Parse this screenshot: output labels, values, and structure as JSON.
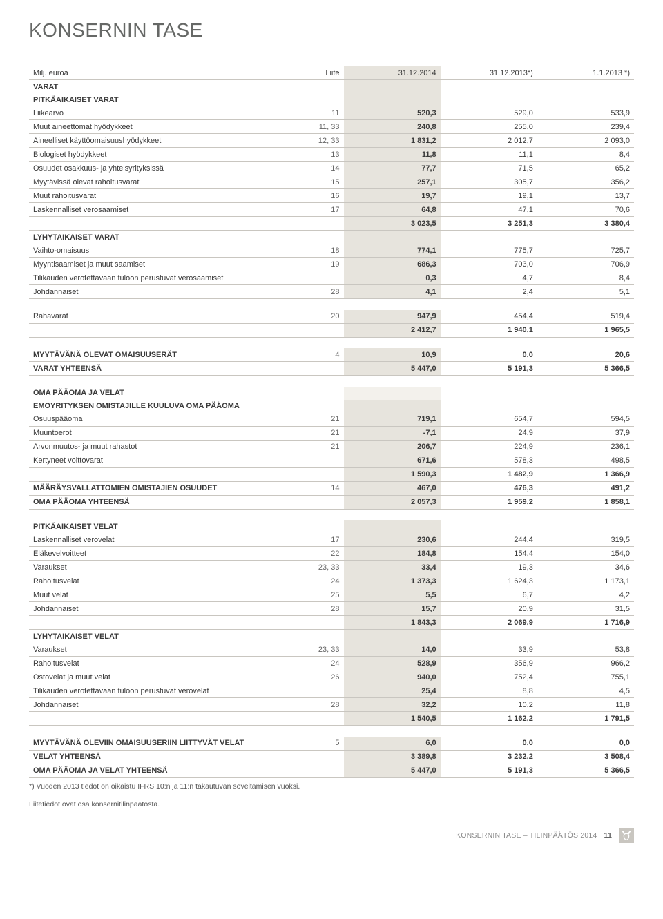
{
  "title": "KONSERNIN TASE",
  "header_cols": {
    "unit": "Milj. euroa",
    "note": "Liite",
    "c1": "31.12.2014",
    "c2": "31.12.2013*)",
    "c3": "1.1.2013 *)"
  },
  "rows": [
    {
      "t": "section",
      "label": "VARAT"
    },
    {
      "t": "section",
      "label": "PITKÄAIKAISET VARAT"
    },
    {
      "t": "row",
      "label": "Liikearvo",
      "note": "11",
      "v": [
        "520,3",
        "529,0",
        "533,9"
      ]
    },
    {
      "t": "row",
      "label": "Muut aineettomat hyödykkeet",
      "note": "11, 33",
      "v": [
        "240,8",
        "255,0",
        "239,4"
      ]
    },
    {
      "t": "row",
      "label": "Aineelliset käyttöomaisuushyödykkeet",
      "note": "12, 33",
      "v": [
        "1 831,2",
        "2 012,7",
        "2 093,0"
      ]
    },
    {
      "t": "row",
      "label": "Biologiset hyödykkeet",
      "note": "13",
      "v": [
        "11,8",
        "11,1",
        "8,4"
      ]
    },
    {
      "t": "row",
      "label": "Osuudet osakkuus- ja yhteisyrityksissä",
      "note": "14",
      "v": [
        "77,7",
        "71,5",
        "65,2"
      ]
    },
    {
      "t": "row",
      "label": "Myytävissä olevat rahoitusvarat",
      "note": "15",
      "v": [
        "257,1",
        "305,7",
        "356,2"
      ]
    },
    {
      "t": "row",
      "label": "Muut rahoitusvarat",
      "note": "16",
      "v": [
        "19,7",
        "19,1",
        "13,7"
      ]
    },
    {
      "t": "row",
      "label": "Laskennalliset verosaamiset",
      "note": "17",
      "v": [
        "64,8",
        "47,1",
        "70,6"
      ]
    },
    {
      "t": "subtotal",
      "label": "",
      "note": "",
      "v": [
        "3 023,5",
        "3 251,3",
        "3 380,4"
      ]
    },
    {
      "t": "section",
      "label": "LYHYTAIKAISET VARAT"
    },
    {
      "t": "row",
      "label": "Vaihto-omaisuus",
      "note": "18",
      "v": [
        "774,1",
        "775,7",
        "725,7"
      ]
    },
    {
      "t": "row",
      "label": "Myyntisaamiset ja muut saamiset",
      "note": "19",
      "v": [
        "686,3",
        "703,0",
        "706,9"
      ]
    },
    {
      "t": "row",
      "label": "Tilikauden verotettavaan tuloon perustuvat verosaamiset",
      "note": "",
      "v": [
        "0,3",
        "4,7",
        "8,4"
      ]
    },
    {
      "t": "row",
      "label": "Johdannaiset",
      "note": "28",
      "v": [
        "4,1",
        "2,4",
        "5,1"
      ]
    },
    {
      "t": "spacer"
    },
    {
      "t": "row",
      "label": "Rahavarat",
      "note": "20",
      "v": [
        "947,9",
        "454,4",
        "519,4"
      ]
    },
    {
      "t": "subtotal",
      "label": "",
      "note": "",
      "v": [
        "2 412,7",
        "1 940,1",
        "1 965,5"
      ]
    },
    {
      "t": "spacer"
    },
    {
      "t": "boldrow",
      "label": "MYYTÄVÄNÄ OLEVAT OMAISUUSERÄT",
      "note": "4",
      "v": [
        "10,9",
        "0,0",
        "20,6"
      ]
    },
    {
      "t": "boldrow",
      "label": "VARAT YHTEENSÄ",
      "note": "",
      "v": [
        "5 447,0",
        "5 191,3",
        "5 366,5"
      ]
    },
    {
      "t": "spacer"
    },
    {
      "t": "section",
      "label": "OMA PÄÄOMA JA VELAT",
      "shade_first": true
    },
    {
      "t": "section",
      "label": "EMOYRITYKSEN OMISTAJILLE KUULUVA OMA PÄÄOMA"
    },
    {
      "t": "row",
      "label": "Osuuspääoma",
      "note": "21",
      "v": [
        "719,1",
        "654,7",
        "594,5"
      ]
    },
    {
      "t": "row",
      "label": "Muuntoerot",
      "note": "21",
      "v": [
        "-7,1",
        "24,9",
        "37,9"
      ]
    },
    {
      "t": "row",
      "label": "Arvonmuutos- ja muut rahastot",
      "note": "21",
      "v": [
        "206,7",
        "224,9",
        "236,1"
      ]
    },
    {
      "t": "row",
      "label": "Kertyneet voittovarat",
      "note": "",
      "v": [
        "671,6",
        "578,3",
        "498,5"
      ]
    },
    {
      "t": "subtotal",
      "label": "",
      "note": "",
      "v": [
        "1 590,3",
        "1 482,9",
        "1 366,9"
      ]
    },
    {
      "t": "boldrow",
      "label": "MÄÄRÄYSVALLATTOMIEN OMISTAJIEN OSUUDET",
      "note": "14",
      "v": [
        "467,0",
        "476,3",
        "491,2"
      ]
    },
    {
      "t": "boldrow",
      "label": "OMA PÄÄOMA YHTEENSÄ",
      "note": "",
      "v": [
        "2 057,3",
        "1 959,2",
        "1 858,1"
      ]
    },
    {
      "t": "spacer"
    },
    {
      "t": "section",
      "label": "PITKÄAIKAISET VELAT"
    },
    {
      "t": "row",
      "label": "Laskennalliset verovelat",
      "note": "17",
      "v": [
        "230,6",
        "244,4",
        "319,5"
      ]
    },
    {
      "t": "row",
      "label": "Eläkevelvoitteet",
      "note": "22",
      "v": [
        "184,8",
        "154,4",
        "154,0"
      ]
    },
    {
      "t": "row",
      "label": "Varaukset",
      "note": "23, 33",
      "v": [
        "33,4",
        "19,3",
        "34,6"
      ]
    },
    {
      "t": "row",
      "label": "Rahoitusvelat",
      "note": "24",
      "v": [
        "1 373,3",
        "1 624,3",
        "1 173,1"
      ]
    },
    {
      "t": "row",
      "label": "Muut velat",
      "note": "25",
      "v": [
        "5,5",
        "6,7",
        "4,2"
      ]
    },
    {
      "t": "row",
      "label": "Johdannaiset",
      "note": "28",
      "v": [
        "15,7",
        "20,9",
        "31,5"
      ]
    },
    {
      "t": "subtotal",
      "label": "",
      "note": "",
      "v": [
        "1 843,3",
        "2 069,9",
        "1 716,9"
      ]
    },
    {
      "t": "section",
      "label": "LYHYTAIKAISET VELAT"
    },
    {
      "t": "row",
      "label": "Varaukset",
      "note": "23, 33",
      "v": [
        "14,0",
        "33,9",
        "53,8"
      ]
    },
    {
      "t": "row",
      "label": "Rahoitusvelat",
      "note": "24",
      "v": [
        "528,9",
        "356,9",
        "966,2"
      ]
    },
    {
      "t": "row",
      "label": "Ostovelat ja muut velat",
      "note": "26",
      "v": [
        "940,0",
        "752,4",
        "755,1"
      ]
    },
    {
      "t": "row",
      "label": "Tilikauden verotettavaan tuloon perustuvat verovelat",
      "note": "",
      "v": [
        "25,4",
        "8,8",
        "4,5"
      ]
    },
    {
      "t": "row",
      "label": "Johdannaiset",
      "note": "28",
      "v": [
        "32,2",
        "10,2",
        "11,8"
      ]
    },
    {
      "t": "subtotal",
      "label": "",
      "note": "",
      "v": [
        "1 540,5",
        "1 162,2",
        "1 791,5"
      ]
    },
    {
      "t": "spacer"
    },
    {
      "t": "boldrow",
      "label": "MYYTÄVÄNÄ OLEVIIN OMAISUUSERIIN LIITTYVÄT VELAT",
      "note": "5",
      "v": [
        "6,0",
        "0,0",
        "0,0"
      ]
    },
    {
      "t": "boldrow",
      "label": "VELAT YHTEENSÄ",
      "note": "",
      "v": [
        "3 389,8",
        "3 232,2",
        "3 508,4"
      ]
    },
    {
      "t": "boldrow",
      "label": "OMA PÄÄOMA JA VELAT YHTEENSÄ",
      "note": "",
      "v": [
        "5 447,0",
        "5 191,3",
        "5 366,5"
      ]
    }
  ],
  "footnote": "*) Vuoden 2013 tiedot on oikaistu IFRS 10:n ja 11:n takautuvan soveltamisen vuoksi.",
  "closing": "Liitetiedot ovat osa konsernitilinpäätöstä.",
  "footer_line": "KONSERNIN TASE – TILINPÄÄTÖS 2014",
  "footer_page": "11",
  "colors": {
    "highlight_bg": "#e7e4dd",
    "shade_bg": "#f3f1ec",
    "rule": "#c9c6c0",
    "icon_bg": "#c9c6c0",
    "icon_fg": "#ffffff"
  }
}
